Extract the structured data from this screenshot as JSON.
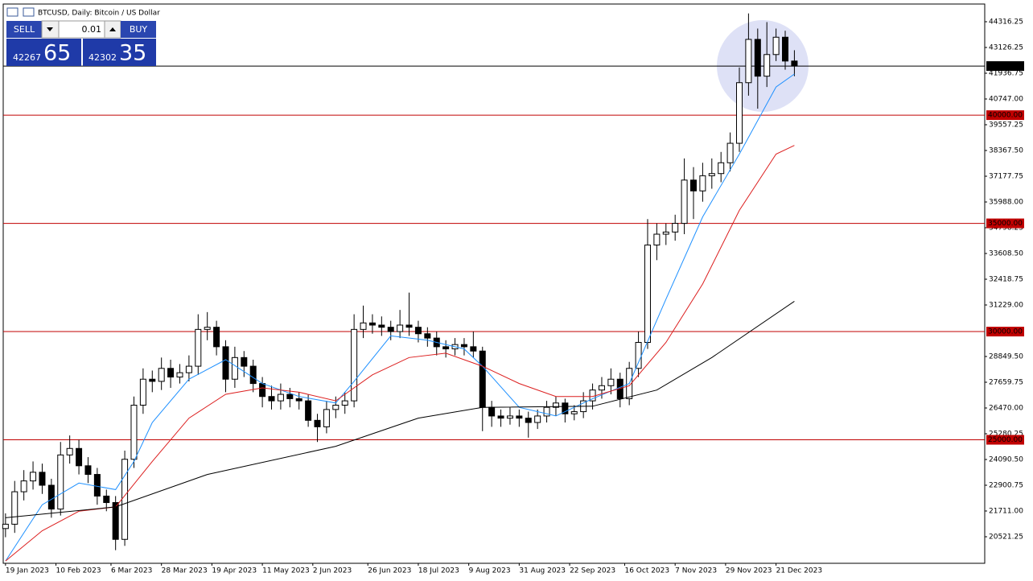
{
  "chart_data": {
    "type": "candlestick",
    "title": "BTCUSD, Daily:  Bitcoin / US Dollar",
    "x": [
      "2023-01-19",
      "2023-01-23",
      "2023-01-27",
      "2023-01-31",
      "2023-02-04",
      "2023-02-08",
      "2023-02-12",
      "2023-02-16",
      "2023-02-20",
      "2023-02-24",
      "2023-02-28",
      "2023-03-04",
      "2023-03-08",
      "2023-03-12",
      "2023-03-16",
      "2023-03-20",
      "2023-03-24",
      "2023-03-28",
      "2023-04-01",
      "2023-04-05",
      "2023-04-09",
      "2023-04-13",
      "2023-04-17",
      "2023-04-21",
      "2023-04-25",
      "2023-04-29",
      "2023-05-03",
      "2023-05-07",
      "2023-05-11",
      "2023-05-15",
      "2023-05-19",
      "2023-05-23",
      "2023-05-27",
      "2023-05-31",
      "2023-06-04",
      "2023-06-08",
      "2023-06-12",
      "2023-06-16",
      "2023-06-20",
      "2023-06-24",
      "2023-06-28",
      "2023-07-02",
      "2023-07-06",
      "2023-07-10",
      "2023-07-14",
      "2023-07-18",
      "2023-07-22",
      "2023-07-26",
      "2023-07-30",
      "2023-08-03",
      "2023-08-07",
      "2023-08-11",
      "2023-08-15",
      "2023-08-19",
      "2023-08-23",
      "2023-08-27",
      "2023-08-31",
      "2023-09-04",
      "2023-09-08",
      "2023-09-12",
      "2023-09-16",
      "2023-09-20",
      "2023-09-24",
      "2023-09-28",
      "2023-10-02",
      "2023-10-06",
      "2023-10-10",
      "2023-10-14",
      "2023-10-18",
      "2023-10-22",
      "2023-10-26",
      "2023-10-30",
      "2023-11-03",
      "2023-11-07",
      "2023-11-11",
      "2023-11-15",
      "2023-11-19",
      "2023-11-23",
      "2023-11-27",
      "2023-12-01",
      "2023-12-05",
      "2023-12-09",
      "2023-12-13",
      "2023-12-17",
      "2023-12-21",
      "2023-12-25",
      "2023-12-29"
    ],
    "open": [
      20900,
      21100,
      22600,
      23100,
      23500,
      22900,
      21800,
      24300,
      24600,
      23800,
      23400,
      22400,
      22100,
      20400,
      24100,
      26600,
      27800,
      27700,
      28300,
      27900,
      28100,
      28400,
      30100,
      30200,
      29300,
      27800,
      28800,
      28400,
      27600,
      27000,
      26800,
      27100,
      26900,
      26800,
      25900,
      25600,
      26400,
      26600,
      26800,
      30100,
      30400,
      30300,
      30200,
      30000,
      30300,
      30200,
      29900,
      29700,
      29300,
      29200,
      29400,
      29300,
      29100,
      26500,
      26100,
      26000,
      26100,
      26000,
      25800,
      26100,
      26500,
      26700,
      26200,
      26300,
      26800,
      27300,
      27500,
      27800,
      26900,
      28300,
      29500,
      34000,
      34500,
      34600,
      35000,
      37000,
      36500,
      37200,
      37300,
      37800,
      38700,
      41500,
      43500,
      41800,
      42800,
      43600,
      42500
    ],
    "high": [
      21600,
      23100,
      23600,
      24000,
      23900,
      23200,
      24900,
      25200,
      25000,
      24200,
      23700,
      22700,
      22400,
      24500,
      27000,
      28300,
      28200,
      28800,
      28700,
      28500,
      28900,
      30800,
      30900,
      30500,
      29600,
      29300,
      29100,
      28700,
      27900,
      27500,
      27600,
      27400,
      27200,
      27100,
      26200,
      26800,
      27000,
      27200,
      30800,
      31200,
      30800,
      30700,
      30500,
      31000,
      31800,
      30500,
      30200,
      30000,
      29600,
      29700,
      29700,
      30000,
      29300,
      26800,
      26400,
      26500,
      26400,
      26300,
      26400,
      26800,
      27000,
      26900,
      26600,
      27200,
      27600,
      27900,
      28300,
      28100,
      28600,
      30000,
      35200,
      35000,
      35000,
      35400,
      38000,
      37600,
      37800,
      38000,
      38300,
      39200,
      42200,
      44700,
      44000,
      44300,
      44000,
      43900,
      43000
    ],
    "low": [
      20500,
      20700,
      22200,
      22700,
      22500,
      21400,
      21500,
      23900,
      23400,
      23000,
      22000,
      21700,
      19900,
      20100,
      23700,
      26200,
      27200,
      27300,
      27400,
      27600,
      27700,
      28000,
      29600,
      28900,
      27200,
      27400,
      27900,
      27200,
      26500,
      26400,
      26400,
      26500,
      26400,
      25600,
      24900,
      25300,
      26000,
      26200,
      26500,
      29700,
      29900,
      29800,
      29600,
      29700,
      29800,
      29500,
      29300,
      28900,
      28800,
      28900,
      28900,
      28800,
      25400,
      25600,
      25600,
      25700,
      25600,
      25100,
      25500,
      25800,
      26100,
      25800,
      25900,
      26000,
      26400,
      26900,
      27100,
      26500,
      26600,
      27900,
      29200,
      33300,
      34000,
      34200,
      34500,
      35200,
      36000,
      36600,
      36900,
      37400,
      38300,
      40900,
      40300,
      41300,
      42500,
      42100,
      41800
    ],
    "close": [
      21100,
      22600,
      23100,
      23500,
      22900,
      21800,
      24300,
      24600,
      23800,
      23400,
      22400,
      22100,
      20400,
      24100,
      26600,
      27800,
      27700,
      28300,
      27900,
      28100,
      28400,
      30100,
      30200,
      29300,
      27800,
      28800,
      28400,
      27600,
      27000,
      26800,
      27100,
      26900,
      26800,
      25900,
      25600,
      26400,
      26600,
      26800,
      30100,
      30400,
      30300,
      30200,
      30000,
      30300,
      30200,
      29900,
      29700,
      29300,
      29200,
      29400,
      29300,
      29100,
      26500,
      26100,
      26000,
      26100,
      26000,
      25800,
      26100,
      26500,
      26700,
      26200,
      26300,
      26800,
      27300,
      27500,
      27800,
      26900,
      28300,
      29500,
      34000,
      34500,
      34600,
      35000,
      37000,
      36500,
      37200,
      37300,
      37800,
      38700,
      41500,
      43500,
      41800,
      42800,
      43600,
      42500,
      42267.65
    ],
    "lines": [
      {
        "color": "#1e90ff",
        "x": [
          "2023-01-19",
          "2023-02-04",
          "2023-02-20",
          "2023-03-08",
          "2023-03-16",
          "2023-03-24",
          "2023-04-09",
          "2023-04-25",
          "2023-05-11",
          "2023-05-27",
          "2023-06-12",
          "2023-06-20",
          "2023-07-06",
          "2023-07-22",
          "2023-08-07",
          "2023-08-15",
          "2023-08-31",
          "2023-09-16",
          "2023-10-02",
          "2023-10-18",
          "2023-11-03",
          "2023-11-19",
          "2023-12-05",
          "2023-12-21",
          "2023-12-29"
        ],
        "values": [
          19400,
          22000,
          23000,
          22700,
          24000,
          25800,
          27800,
          28700,
          27600,
          27000,
          26700,
          27700,
          29800,
          29600,
          29200,
          28400,
          26500,
          26100,
          26900,
          27600,
          31500,
          35300,
          38200,
          41300,
          41900
        ]
      },
      {
        "color": "#dc1e1e",
        "x": [
          "2023-01-19",
          "2023-02-04",
          "2023-02-20",
          "2023-03-08",
          "2023-03-24",
          "2023-04-09",
          "2023-04-25",
          "2023-05-11",
          "2023-05-27",
          "2023-06-12",
          "2023-06-28",
          "2023-07-14",
          "2023-07-30",
          "2023-08-15",
          "2023-08-31",
          "2023-09-16",
          "2023-10-02",
          "2023-10-18",
          "2023-11-03",
          "2023-11-19",
          "2023-12-05",
          "2023-12-21",
          "2023-12-29"
        ],
        "values": [
          19400,
          20800,
          21700,
          21900,
          24000,
          26000,
          27100,
          27400,
          27200,
          26800,
          28000,
          28800,
          29000,
          28400,
          27600,
          27000,
          27000,
          27500,
          29500,
          32200,
          35600,
          38200,
          38600
        ]
      },
      {
        "color": "#000000",
        "x": [
          "2023-01-19",
          "2023-03-08",
          "2023-04-17",
          "2023-06-12",
          "2023-07-18",
          "2023-08-15",
          "2023-10-02",
          "2023-10-30",
          "2023-11-23",
          "2023-12-29"
        ],
        "values": [
          21400,
          21900,
          23400,
          24700,
          26000,
          26500,
          26550,
          27300,
          28800,
          31400
        ]
      }
    ],
    "levels": [
      {
        "value": 40000,
        "label": "40000.00",
        "color": "#c00000"
      },
      {
        "value": 35000,
        "label": "35000.00",
        "color": "#c00000"
      },
      {
        "value": 30000,
        "label": "30000.00",
        "color": "#c00000"
      },
      {
        "value": 25000,
        "label": "25000.00",
        "color": "#c00000"
      }
    ],
    "last_price": 42267.65,
    "xlim": [
      "2023-01-18",
      "2024-03-21"
    ],
    "xticks": [
      {
        "value": "2023-01-19",
        "label": "19 Jan 2023"
      },
      {
        "value": "2023-02-10",
        "label": "10 Feb 2023"
      },
      {
        "value": "2023-03-06",
        "label": "6 Mar 2023"
      },
      {
        "value": "2023-03-28",
        "label": "28 Mar 2023"
      },
      {
        "value": "2023-04-19",
        "label": "19 Apr 2023"
      },
      {
        "value": "2023-05-11",
        "label": "11 May 2023"
      },
      {
        "value": "2023-06-02",
        "label": "2 Jun 2023"
      },
      {
        "value": "2023-06-26",
        "label": "26 Jun 2023"
      },
      {
        "value": "2023-07-18",
        "label": "18 Jul 2023"
      },
      {
        "value": "2023-08-09",
        "label": "9 Aug 2023"
      },
      {
        "value": "2023-08-31",
        "label": "31 Aug 2023"
      },
      {
        "value": "2023-09-22",
        "label": "22 Sep 2023"
      },
      {
        "value": "2023-10-16",
        "label": "16 Oct 2023"
      },
      {
        "value": "2023-11-07",
        "label": "7 Nov 2023"
      },
      {
        "value": "2023-11-29",
        "label": "29 Nov 2023"
      },
      {
        "value": "2023-12-21",
        "label": "21 Dec 2023"
      }
    ],
    "ylim": [
      19294,
      45134
    ],
    "yticks": [
      44316.25,
      43126.25,
      41936.75,
      {
        "value": 40747,
        "label": "40747.00"
      },
      39557.25,
      {
        "value": 38367.5,
        "label": "38367.50"
      },
      37177.75,
      {
        "value": 35988,
        "label": "35988.00"
      },
      34798.25,
      {
        "value": 33608.5,
        "label": "33608.50"
      },
      32418.75,
      {
        "value": 31229,
        "label": "31229.00"
      },
      {
        "value": 28849.5,
        "label": "28849.50"
      },
      27659.75,
      {
        "value": 26470,
        "label": "26470.00"
      },
      25280.25,
      {
        "value": 24090.5,
        "label": "24090.50"
      },
      22900.75,
      {
        "value": 21711,
        "label": "21711.00"
      },
      20521.25
    ],
    "grid": false,
    "up_color": "#ffffff",
    "down_color": "#000000"
  },
  "trade_panel": {
    "sell": "SELL",
    "buy": "BUY",
    "volume": "0.01",
    "bid_main": "42267",
    "bid_pips": "65",
    "ask_main": "42302",
    "ask_pips": "35"
  }
}
